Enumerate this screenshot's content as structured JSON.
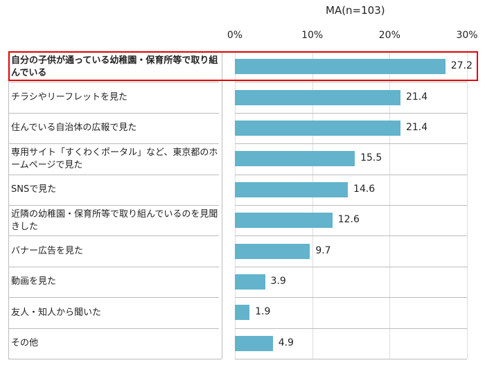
{
  "note": "MA(n=103)",
  "chart_data": {
    "type": "bar",
    "orientation": "horizontal",
    "xlim": [
      0,
      30
    ],
    "tick_labels": [
      "0%",
      "10%",
      "20%",
      "30%"
    ],
    "grid": true,
    "highlight_index": 0,
    "highlight_color": "#e00000",
    "bar_color": "#62b3cb",
    "categories": [
      "自分の子供が通っている幼稚園・保育所等で取り組んでいる",
      "チラシやリーフレットを見た",
      "住んでいる自治体の広報で見た",
      "専用サイト「すくわくポータル」など、東京都のホームページで見た",
      "SNSで見た",
      "近隣の幼稚園・保育所等で取り組んでいるのを見聞きした",
      "バナー広告を見た",
      "動画を見た",
      "友人・知人から聞いた",
      "その他"
    ],
    "values": [
      27.2,
      21.4,
      21.4,
      15.5,
      14.6,
      12.6,
      9.7,
      3.9,
      1.9,
      4.9
    ],
    "value_labels": [
      "27.2",
      "21.4",
      "21.4",
      "15.5",
      "14.6",
      "12.6",
      "9.7",
      "3.9",
      "1.9",
      "4.9"
    ]
  }
}
